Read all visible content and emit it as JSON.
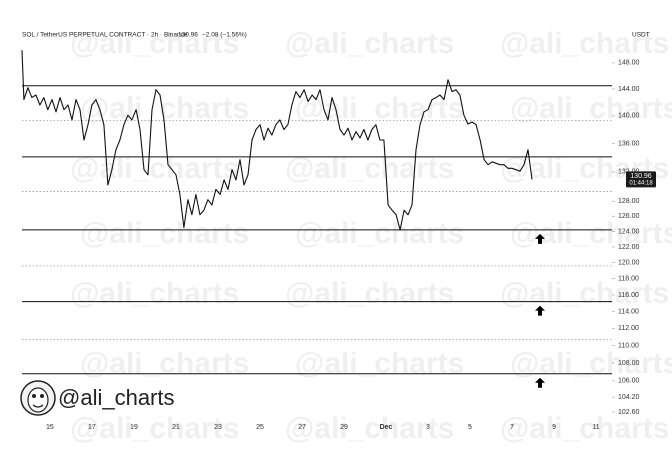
{
  "chart_data": {
    "type": "line",
    "title": "SOL / TetherUS PERPETUAL CONTRACT · 2h · Binance",
    "last_price": "130.96",
    "change": "−2.08 (−1.56%)",
    "currency": "USDT",
    "countdown": "01:44:18",
    "watermark": "@ali_charts",
    "log_scale": true,
    "color": "#111111",
    "level_color": "#111111",
    "dotted_level_color": "#999999",
    "xlim": [
      -1.33,
      26.76
    ],
    "ylim": [
      101.2,
      153.2
    ],
    "xticks": [
      {
        "value": 0,
        "label": "15"
      },
      {
        "value": 2,
        "label": "17"
      },
      {
        "value": 4,
        "label": "19"
      },
      {
        "value": 6,
        "label": "21"
      },
      {
        "value": 8,
        "label": "23"
      },
      {
        "value": 10,
        "label": "25"
      },
      {
        "value": 12,
        "label": "27"
      },
      {
        "value": 14,
        "label": "29"
      },
      {
        "value": 16,
        "label": "Dec"
      },
      {
        "value": 18,
        "label": "3"
      },
      {
        "value": 20,
        "label": "5"
      },
      {
        "value": 22,
        "label": "7"
      },
      {
        "value": 24,
        "label": "9"
      },
      {
        "value": 26,
        "label": "11"
      }
    ],
    "yticks": [
      {
        "value": 148,
        "label": "148.00"
      },
      {
        "value": 144,
        "label": "144.00"
      },
      {
        "value": 140,
        "label": "140.00"
      },
      {
        "value": 136,
        "label": "136.00"
      },
      {
        "value": 132,
        "label": "132.00"
      },
      {
        "value": 128,
        "label": "128.00"
      },
      {
        "value": 126,
        "label": "126.00"
      },
      {
        "value": 124,
        "label": "124.00"
      },
      {
        "value": 122,
        "label": "122.00"
      },
      {
        "value": 120,
        "label": "120.00"
      },
      {
        "value": 118,
        "label": "118.00"
      },
      {
        "value": 116,
        "label": "116.00"
      },
      {
        "value": 114,
        "label": "114.00"
      },
      {
        "value": 112,
        "label": "112.00"
      },
      {
        "value": 110,
        "label": "110.00"
      },
      {
        "value": 108,
        "label": "108.00"
      },
      {
        "value": 106,
        "label": "106.00"
      },
      {
        "value": 104.2,
        "label": "104.20"
      },
      {
        "value": 102.6,
        "label": "102.60"
      }
    ],
    "levels": [
      144.5,
      134.1,
      124.2,
      115.2,
      106.8
    ],
    "dotted_levels": [
      139.3,
      129.3,
      119.6,
      110.7
    ],
    "series": [
      {
        "name": "SOLUSDT.P",
        "color": "#111111",
        "x": [
          -1.33,
          -1.24,
          -1.05,
          -0.86,
          -0.67,
          -0.48,
          -0.29,
          -0.1,
          0.1,
          0.29,
          0.48,
          0.67,
          0.86,
          1.05,
          1.24,
          1.43,
          1.62,
          1.81,
          2.0,
          2.19,
          2.38,
          2.57,
          2.76,
          2.95,
          3.14,
          3.33,
          3.52,
          3.71,
          3.9,
          4.1,
          4.29,
          4.48,
          4.67,
          4.86,
          5.05,
          5.24,
          5.43,
          5.62,
          5.81,
          6.0,
          6.19,
          6.38,
          6.57,
          6.76,
          6.95,
          7.14,
          7.33,
          7.52,
          7.71,
          7.9,
          8.1,
          8.29,
          8.48,
          8.67,
          8.86,
          9.05,
          9.24,
          9.43,
          9.62,
          9.81,
          10.0,
          10.19,
          10.38,
          10.57,
          10.76,
          10.95,
          11.14,
          11.33,
          11.52,
          11.71,
          11.9,
          12.1,
          12.29,
          12.48,
          12.67,
          12.86,
          13.05,
          13.24,
          13.43,
          13.62,
          13.81,
          14.0,
          14.19,
          14.38,
          14.57,
          14.76,
          14.95,
          15.14,
          15.33,
          15.52,
          15.71,
          15.9,
          16.1,
          16.29,
          16.48,
          16.67,
          16.86,
          17.05,
          17.24,
          17.43,
          17.62,
          17.81,
          18.0,
          18.19,
          18.38,
          18.57,
          18.76,
          18.95,
          19.14,
          19.33,
          19.52,
          19.71,
          19.9,
          20.1,
          20.29,
          20.48,
          20.67,
          20.86,
          21.05,
          21.24,
          21.43,
          21.62,
          21.81,
          22.0,
          22.19,
          22.38,
          22.57,
          22.76,
          22.95
        ],
        "values": [
          150.0,
          142.4,
          144.2,
          142.7,
          143.1,
          141.6,
          142.7,
          140.9,
          142.4,
          140.6,
          142.7,
          140.9,
          141.6,
          139.4,
          142.4,
          140.9,
          136.5,
          138.7,
          141.6,
          142.4,
          140.9,
          138.7,
          130.2,
          132.3,
          135.1,
          136.5,
          138.7,
          140.1,
          139.4,
          140.9,
          138.0,
          132.3,
          131.6,
          140.9,
          143.9,
          143.1,
          139.4,
          133.0,
          132.3,
          131.6,
          128.9,
          124.5,
          128.2,
          126.2,
          128.9,
          126.2,
          126.8,
          128.2,
          127.5,
          129.6,
          128.9,
          130.9,
          129.6,
          132.3,
          130.9,
          133.7,
          130.2,
          131.6,
          136.5,
          138.0,
          138.7,
          136.5,
          138.2,
          137.2,
          138.7,
          139.4,
          138.0,
          138.7,
          141.6,
          143.6,
          142.7,
          143.9,
          142.1,
          143.1,
          142.4,
          143.9,
          140.9,
          139.4,
          142.7,
          140.9,
          138.0,
          137.2,
          138.2,
          136.5,
          137.7,
          136.8,
          138.0,
          136.5,
          138.0,
          138.7,
          136.5,
          136.5,
          127.5,
          126.8,
          126.2,
          124.2,
          126.8,
          126.2,
          127.5,
          135.1,
          138.7,
          140.6,
          140.9,
          142.4,
          142.7,
          143.1,
          142.4,
          145.4,
          143.6,
          143.9,
          143.1,
          140.1,
          138.8,
          139.1,
          138.7,
          136.5,
          133.7,
          133.0,
          133.4,
          133.2,
          133.0,
          133.0,
          132.5,
          132.5,
          132.3,
          132.1,
          133.0,
          135.1,
          130.96
        ]
      }
    ]
  }
}
